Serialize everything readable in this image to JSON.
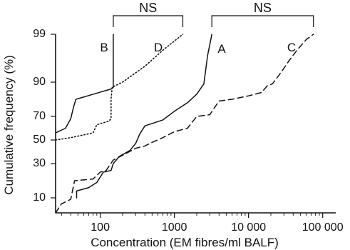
{
  "chart_data": {
    "type": "line",
    "title": "",
    "xlabel": "Concentration (EM fibres/ml BALF)",
    "ylabel": "Cumulative frequency (%)",
    "x_scale": "log",
    "xlim": [
      25,
      150000
    ],
    "ylim": [
      0,
      99
    ],
    "y_scale": "probability",
    "x_ticks": [
      {
        "value": 100,
        "label": "100"
      },
      {
        "value": 1000,
        "label": "1000"
      },
      {
        "value": 10000,
        "label": "10 000"
      },
      {
        "value": 100000,
        "label": "100 000"
      }
    ],
    "y_ticks": [
      {
        "value": 10,
        "label": "10"
      },
      {
        "value": 30,
        "label": "30"
      },
      {
        "value": 50,
        "label": "50"
      },
      {
        "value": 70,
        "label": "70"
      },
      {
        "value": 90,
        "label": "90"
      },
      {
        "value": 99,
        "label": "99"
      }
    ],
    "series": [
      {
        "name": "A",
        "label": "A",
        "color": "#111111",
        "dash": "solid",
        "points": [
          [
            48,
            10
          ],
          [
            48,
            14
          ],
          [
            70,
            16
          ],
          [
            90,
            19
          ],
          [
            110,
            25
          ],
          [
            140,
            26
          ],
          [
            150,
            30
          ],
          [
            180,
            36
          ],
          [
            250,
            41
          ],
          [
            300,
            47
          ],
          [
            340,
            55
          ],
          [
            400,
            62
          ],
          [
            500,
            64
          ],
          [
            700,
            67
          ],
          [
            1000,
            73
          ],
          [
            1500,
            78
          ],
          [
            2000,
            83
          ],
          [
            2500,
            89
          ],
          [
            2800,
            95
          ],
          [
            3200,
            99
          ]
        ]
      },
      {
        "name": "B",
        "label": "B",
        "color": "#111111",
        "dash": "solid",
        "points": [
          [
            25,
            56
          ],
          [
            34,
            60
          ],
          [
            40,
            68
          ],
          [
            44,
            76
          ],
          [
            47,
            80
          ],
          [
            140,
            86
          ],
          [
            150,
            87
          ],
          [
            150,
            99
          ]
        ]
      },
      {
        "name": "C",
        "label": "C",
        "color": "#111111",
        "dash": "dashed",
        "points": [
          [
            25,
            0
          ],
          [
            30,
            6
          ],
          [
            40,
            9
          ],
          [
            45,
            20
          ],
          [
            80,
            21
          ],
          [
            100,
            25
          ],
          [
            120,
            26
          ],
          [
            150,
            33
          ],
          [
            200,
            37
          ],
          [
            300,
            43
          ],
          [
            400,
            45
          ],
          [
            500,
            48
          ],
          [
            700,
            52
          ],
          [
            1000,
            57
          ],
          [
            1500,
            60
          ],
          [
            2000,
            70
          ],
          [
            3000,
            71
          ],
          [
            4000,
            79
          ],
          [
            6000,
            80
          ],
          [
            10000,
            82
          ],
          [
            15000,
            84
          ],
          [
            18000,
            88
          ],
          [
            21000,
            89
          ],
          [
            28000,
            92
          ],
          [
            35000,
            94
          ],
          [
            45000,
            96
          ],
          [
            60000,
            98
          ],
          [
            75000,
            99
          ]
        ]
      },
      {
        "name": "D",
        "label": "D",
        "color": "#111111",
        "dash": "dotted",
        "points": [
          [
            25,
            50
          ],
          [
            40,
            52
          ],
          [
            80,
            56
          ],
          [
            90,
            63
          ],
          [
            130,
            66
          ],
          [
            140,
            68
          ],
          [
            140,
            80
          ],
          [
            145,
            87
          ],
          [
            200,
            90
          ],
          [
            400,
            93
          ],
          [
            700,
            96
          ],
          [
            1300,
            99
          ]
        ]
      }
    ],
    "brackets": [
      {
        "label": "NS",
        "x_start": 150,
        "x_end": 1300
      },
      {
        "label": "NS",
        "x_start": 3200,
        "x_end": 75000
      }
    ],
    "grid": false,
    "legend": "none"
  }
}
